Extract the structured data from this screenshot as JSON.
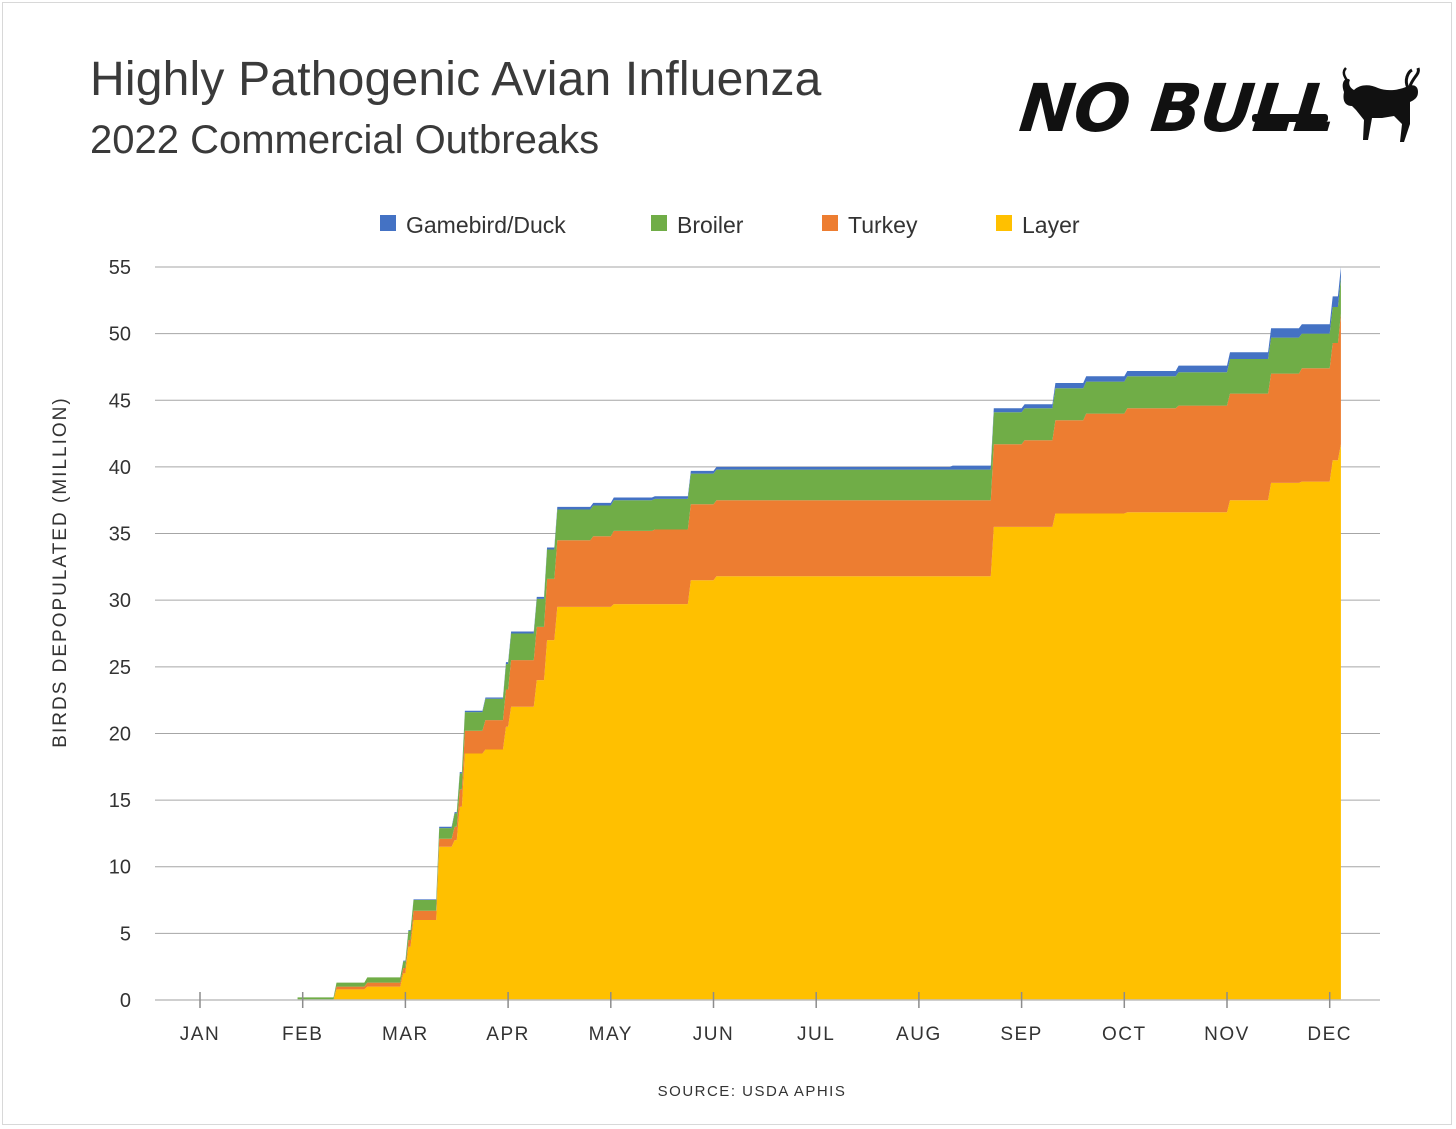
{
  "header": {
    "title": "Highly Pathogenic Avian Influenza",
    "subtitle": "2022 Commercial Outbreaks",
    "brand": "NO BULL"
  },
  "footer": {
    "source": "SOURCE: USDA APHIS"
  },
  "colors": {
    "Layer": "#ffc000",
    "Turkey": "#ed7d31",
    "Broiler": "#70ad47",
    "Gamebird/Duck": "#4472c4",
    "grid": "#a6a6a6",
    "text": "#333333"
  },
  "chart_data": {
    "type": "area",
    "stacked": true,
    "ylabel": "BIRDS DEPOPULATED (MILLION)",
    "xlabel": "",
    "ylim": [
      0,
      55
    ],
    "yticks": [
      0,
      5,
      10,
      15,
      20,
      25,
      30,
      35,
      40,
      45,
      50,
      55
    ],
    "xlim": [
      0,
      11.2
    ],
    "x_tick_labels": [
      "JAN",
      "FEB",
      "MAR",
      "APR",
      "MAY",
      "JUN",
      "JUL",
      "AUG",
      "SEP",
      "OCT",
      "NOV",
      "DEC"
    ],
    "x_unit": "months elapsed in 2022 (0 = Jan 1)",
    "legend": {
      "position": "top",
      "entries": [
        "Gamebird/Duck",
        "Broiler",
        "Turkey",
        "Layer"
      ]
    },
    "grid": "horizontal",
    "x": [
      0.95,
      1.3,
      1.6,
      1.95,
      2.0,
      2.05,
      2.3,
      2.45,
      2.5,
      2.55,
      2.75,
      2.95,
      3.0,
      3.25,
      3.35,
      3.45,
      3.8,
      4.0,
      4.4,
      4.75,
      5.0,
      5.3,
      5.5,
      6.0,
      6.5,
      7.0,
      7.3,
      7.7,
      8.0,
      8.3,
      8.6,
      9.0,
      9.5,
      10.0,
      10.4,
      10.7,
      11.0,
      11.08
    ],
    "series": [
      {
        "name": "Layer",
        "values": [
          0,
          0.8,
          1.0,
          2.0,
          4.0,
          6.0,
          11.5,
          12.0,
          14.5,
          18.5,
          18.8,
          20.5,
          22.0,
          24.0,
          27.0,
          29.5,
          29.5,
          29.7,
          29.7,
          31.5,
          31.8,
          31.8,
          31.8,
          31.8,
          31.8,
          31.8,
          31.8,
          35.5,
          35.5,
          36.5,
          36.5,
          36.6,
          36.6,
          37.5,
          38.8,
          38.9,
          40.5,
          41.7
        ]
      },
      {
        "name": "Turkey",
        "values": [
          0,
          0.2,
          0.3,
          0.4,
          0.5,
          0.7,
          0.6,
          1.0,
          1.3,
          1.7,
          2.2,
          2.8,
          3.5,
          4.0,
          4.6,
          5.0,
          5.3,
          5.5,
          5.6,
          5.7,
          5.7,
          5.7,
          5.7,
          5.7,
          5.7,
          5.7,
          5.7,
          6.2,
          6.5,
          7.0,
          7.5,
          7.8,
          8.0,
          8.0,
          8.2,
          8.5,
          8.8,
          9.8
        ]
      },
      {
        "name": "Broiler",
        "values": [
          0.2,
          0.3,
          0.4,
          0.5,
          0.7,
          0.8,
          0.8,
          1.0,
          1.2,
          1.4,
          1.6,
          1.9,
          2.0,
          2.1,
          2.2,
          2.3,
          2.3,
          2.3,
          2.3,
          2.3,
          2.3,
          2.3,
          2.3,
          2.3,
          2.3,
          2.3,
          2.3,
          2.4,
          2.4,
          2.4,
          2.4,
          2.4,
          2.5,
          2.6,
          2.7,
          2.6,
          2.7,
          2.7
        ]
      },
      {
        "name": "Gamebird/Duck",
        "values": [
          0,
          0,
          0,
          0.05,
          0.05,
          0.05,
          0.1,
          0.1,
          0.1,
          0.1,
          0.1,
          0.15,
          0.15,
          0.15,
          0.15,
          0.2,
          0.2,
          0.2,
          0.2,
          0.2,
          0.2,
          0.2,
          0.2,
          0.2,
          0.2,
          0.2,
          0.3,
          0.3,
          0.3,
          0.4,
          0.4,
          0.4,
          0.5,
          0.5,
          0.7,
          0.7,
          0.8,
          0.8
        ]
      }
    ]
  }
}
